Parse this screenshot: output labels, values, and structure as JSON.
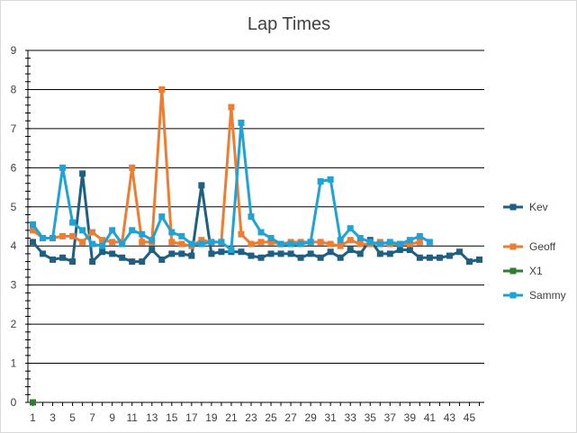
{
  "chart_data": {
    "type": "line",
    "title": "Lap Times",
    "xlabel": "",
    "ylabel": "",
    "ylim": [
      0,
      9
    ],
    "y_ticks": [
      0,
      1,
      2,
      3,
      4,
      5,
      6,
      7,
      8,
      9
    ],
    "x_tick_labels": [
      1,
      3,
      5,
      7,
      9,
      11,
      13,
      15,
      17,
      19,
      21,
      23,
      25,
      27,
      29,
      31,
      33,
      35,
      37,
      39,
      41,
      43,
      45
    ],
    "x_range": [
      1,
      46
    ],
    "grid": "horizontal",
    "legend_position": "right",
    "series": [
      {
        "name": "Kev",
        "color": "#1f5f82",
        "marker": "square",
        "x": [
          1,
          2,
          3,
          4,
          5,
          6,
          7,
          8,
          9,
          10,
          11,
          12,
          13,
          14,
          15,
          16,
          17,
          18,
          19,
          20,
          21,
          22,
          23,
          24,
          25,
          26,
          27,
          28,
          29,
          30,
          31,
          32,
          33,
          34,
          35,
          36,
          37,
          38,
          39,
          40,
          41,
          42,
          43,
          44,
          45,
          46
        ],
        "values": [
          4.1,
          3.8,
          3.65,
          3.7,
          3.6,
          5.85,
          3.6,
          3.85,
          3.8,
          3.7,
          3.6,
          3.6,
          3.9,
          3.65,
          3.8,
          3.8,
          3.75,
          5.55,
          3.8,
          3.85,
          3.85,
          3.85,
          3.75,
          3.7,
          3.8,
          3.8,
          3.8,
          3.7,
          3.8,
          3.7,
          3.85,
          3.7,
          3.9,
          3.8,
          4.15,
          3.8,
          3.8,
          3.9,
          3.9,
          3.7,
          3.7,
          3.7,
          3.75,
          3.85,
          3.6,
          3.65
        ]
      },
      {
        "name": "Geoff",
        "color": "#ed7d31",
        "marker": "square",
        "x": [
          1,
          2,
          3,
          4,
          5,
          6,
          7,
          8,
          9,
          10,
          11,
          12,
          13,
          14,
          15,
          16,
          17,
          18,
          19,
          20,
          21,
          22,
          23,
          24,
          25,
          26,
          27,
          28,
          29,
          30,
          31,
          32,
          33,
          34,
          35,
          36,
          37,
          38,
          39,
          40
        ],
        "values": [
          4.4,
          4.2,
          4.2,
          4.25,
          4.25,
          4.1,
          4.35,
          4.15,
          4.1,
          4.1,
          6.0,
          4.1,
          4.1,
          8.0,
          4.1,
          4.05,
          4.0,
          4.15,
          4.1,
          4.1,
          7.55,
          4.3,
          4.05,
          4.1,
          4.1,
          4.05,
          4.1,
          4.1,
          4.1,
          4.1,
          4.05,
          4.0,
          4.15,
          4.05,
          4.05,
          4.1,
          4.05,
          4.05,
          4.05,
          4.1
        ]
      },
      {
        "name": "X1",
        "color": "#2e7d32",
        "marker": "square",
        "x": [
          1
        ],
        "values": [
          0
        ]
      },
      {
        "name": "Sammy",
        "color": "#1fa2d6",
        "marker": "square",
        "x": [
          1,
          2,
          3,
          4,
          5,
          6,
          7,
          8,
          9,
          10,
          11,
          12,
          13,
          14,
          15,
          16,
          17,
          18,
          19,
          20,
          21,
          22,
          23,
          24,
          25,
          26,
          27,
          28,
          29,
          30,
          31,
          32,
          33,
          34,
          35,
          36,
          37,
          38,
          39,
          40,
          41
        ],
        "values": [
          4.55,
          4.2,
          4.2,
          6.0,
          4.6,
          4.4,
          4.05,
          4.0,
          4.4,
          4.05,
          4.4,
          4.3,
          4.15,
          4.75,
          4.35,
          4.25,
          4.05,
          4.05,
          4.1,
          4.1,
          3.9,
          7.15,
          4.75,
          4.35,
          4.2,
          4.05,
          4.05,
          4.05,
          4.1,
          5.65,
          5.7,
          4.15,
          4.45,
          4.2,
          4.1,
          4.05,
          4.1,
          4.05,
          4.15,
          4.25,
          4.1
        ]
      }
    ]
  }
}
